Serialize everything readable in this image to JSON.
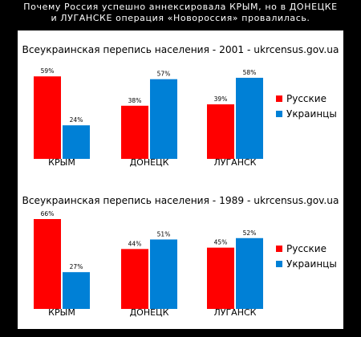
{
  "header": {
    "line1": "Почему Россия успешно аннексировала КРЫМ, но в ДОНЕЦКЕ",
    "line2": "и ЛУГАНСКЕ операция «Новороссия» провалилась."
  },
  "colors": {
    "russians": "#ff0000",
    "ukrainians": "#0080d6",
    "background": "#000000"
  },
  "chart_data": [
    {
      "type": "bar",
      "title": "Всеукраинская перепись населения - 2001 - ukrcensus.gov.ua",
      "categories": [
        "КРЫМ",
        "ДОНЕЦК",
        "ЛУГАНСК"
      ],
      "series": [
        {
          "name": "Русские",
          "values": [
            59,
            38,
            39
          ],
          "labels": [
            "59%",
            "38%",
            "39%"
          ]
        },
        {
          "name": "Украинцы",
          "values": [
            24,
            57,
            58
          ],
          "labels": [
            "24%",
            "57%",
            "58%"
          ]
        }
      ],
      "ylim": [
        0,
        66
      ],
      "legend": "right",
      "grid": false
    },
    {
      "type": "bar",
      "title": "Всеукраинская перепись населения - 1989 - ukrcensus.gov.ua",
      "categories": [
        "КРЫМ",
        "ДОНЕЦК",
        "ЛУГАНСК"
      ],
      "series": [
        {
          "name": "Русские",
          "values": [
            66,
            44,
            45
          ],
          "labels": [
            "66%",
            "44%",
            "45%"
          ]
        },
        {
          "name": "Украинцы",
          "values": [
            27,
            51,
            52
          ],
          "labels": [
            "27%",
            "51%",
            "52%"
          ]
        }
      ],
      "ylim": [
        0,
        66
      ],
      "legend": "right",
      "grid": false
    }
  ]
}
